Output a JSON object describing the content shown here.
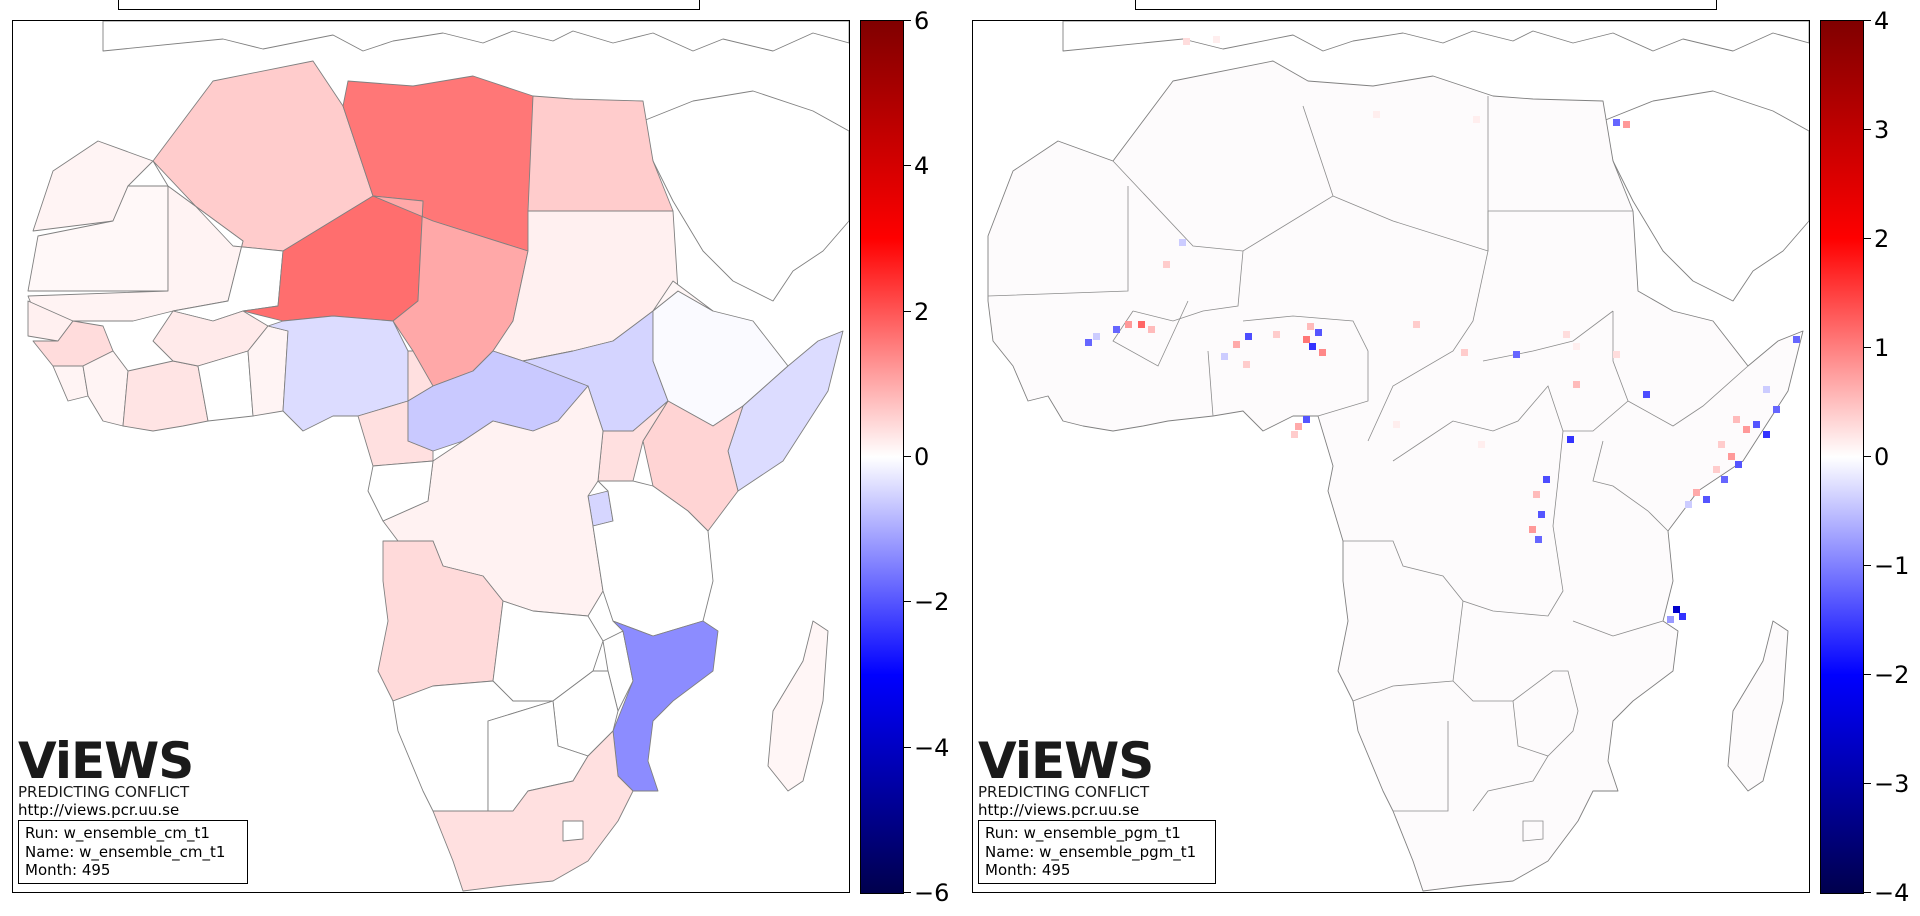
{
  "panels": [
    {
      "id": "cm",
      "logo": {
        "wordmark": "ViEWS",
        "tagline": "PREDICTING CONFLICT",
        "url": "http://views.pcr.uu.se"
      },
      "info": {
        "run": "Run: w_ensemble_cm_t1",
        "name": "Name: w_ensemble_cm_t1",
        "month": "Month: 495"
      },
      "colorbar": {
        "min": -6,
        "max": 6,
        "ticks": [
          "6",
          "4",
          "2",
          "0",
          "−2",
          "−4",
          "−6"
        ]
      },
      "countries": [
        {
          "name": "Libya",
          "value": 2.5
        },
        {
          "name": "Niger",
          "value": 2.9
        },
        {
          "name": "Algeria",
          "value": 1.0
        },
        {
          "name": "Chad",
          "value": 1.8
        },
        {
          "name": "Egypt",
          "value": 0.9
        },
        {
          "name": "Sudan",
          "value": 0.5
        },
        {
          "name": "Nigeria",
          "value": -0.6
        },
        {
          "name": "Central African Republic",
          "value": -1.0
        },
        {
          "name": "South Sudan",
          "value": -0.8
        },
        {
          "name": "Ethiopia",
          "value": -0.1
        },
        {
          "name": "Somalia",
          "value": -0.6
        },
        {
          "name": "Kenya",
          "value": 0.9
        },
        {
          "name": "Mozambique",
          "value": -2.3
        },
        {
          "name": "Angola",
          "value": 0.8
        },
        {
          "name": "Democratic Republic of the Congo",
          "value": 0.3
        },
        {
          "name": "South Africa",
          "value": 0.5
        },
        {
          "name": "Cameroon",
          "value": 0.6
        }
      ]
    },
    {
      "id": "pgm",
      "logo": {
        "wordmark": "ViEWS",
        "tagline": "PREDICTING CONFLICT",
        "url": "http://views.pcr.uu.se"
      },
      "info": {
        "run": "Run: w_ensemble_pgm_t1",
        "name": "Name: w_ensemble_pgm_t1",
        "month": "Month: 495"
      },
      "colorbar": {
        "min": -4,
        "max": 4,
        "ticks": [
          "4",
          "3",
          "2",
          "1",
          "0",
          "−1",
          "−2",
          "−3",
          "−4"
        ]
      }
    }
  ],
  "colors": {
    "negative_end": "#00004d",
    "positive_end": "#800000",
    "neutral": "#ffffff"
  }
}
